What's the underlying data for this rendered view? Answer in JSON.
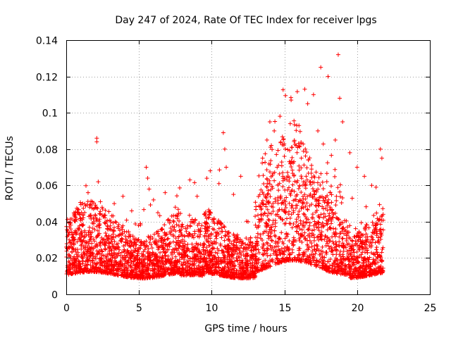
{
  "chart_data": {
    "type": "scatter",
    "title": "Day 247 of 2024, Rate Of TEC Index for receiver lpgs",
    "xlabel": "GPS time / hours",
    "ylabel": "ROTI / TECUs",
    "xlim": [
      0,
      25
    ],
    "ylim": [
      0,
      0.14
    ],
    "xticks": [
      0,
      5,
      10,
      15,
      20,
      25
    ],
    "xtick_labels": [
      "0",
      "5",
      "10",
      "15",
      "20",
      "25"
    ],
    "yticks": [
      0,
      0.02,
      0.04,
      0.06,
      0.08,
      0.1,
      0.12,
      0.14
    ],
    "ytick_labels": [
      "0",
      "0.02",
      "0.04",
      "0.06",
      "0.08",
      "0.1",
      "0.12",
      "0.14"
    ],
    "grid": true,
    "marker": "+",
    "color": "#ff0000",
    "series": [
      {
        "name": "ROTI",
        "x": [
          0.1,
          0.2,
          0.3,
          0.5,
          1.0,
          1.5,
          1.6,
          1.8,
          2.1,
          2.1,
          2.2,
          2.5,
          3.0,
          3.3,
          3.9,
          4.5,
          5.1,
          5.5,
          5.6,
          5.7,
          6.0,
          6.3,
          6.8,
          7.5,
          8.0,
          8.5,
          9.0,
          9.5,
          9.9,
          10.5,
          10.8,
          10.9,
          11.0,
          11.5,
          12.0,
          12.5,
          13.5,
          13.8,
          14.0,
          14.1,
          14.3,
          14.5,
          15.0,
          15.5,
          16.0,
          16.4,
          16.6,
          17.0,
          17.3,
          17.5,
          18.0,
          18.5,
          18.7,
          18.8,
          19.0,
          19.5,
          20.0,
          20.5,
          21.0,
          21.3,
          21.6,
          21.7
        ],
        "y": [
          0.035,
          0.03,
          0.02,
          0.028,
          0.042,
          0.056,
          0.048,
          0.051,
          0.086,
          0.084,
          0.062,
          0.047,
          0.036,
          0.05,
          0.054,
          0.046,
          0.039,
          0.07,
          0.064,
          0.058,
          0.052,
          0.045,
          0.056,
          0.048,
          0.03,
          0.063,
          0.054,
          0.044,
          0.068,
          0.061,
          0.089,
          0.08,
          0.07,
          0.055,
          0.065,
          0.04,
          0.075,
          0.085,
          0.095,
          0.082,
          0.09,
          0.07,
          0.076,
          0.081,
          0.093,
          0.113,
          0.105,
          0.11,
          0.09,
          0.125,
          0.12,
          0.085,
          0.132,
          0.108,
          0.095,
          0.078,
          0.07,
          0.065,
          0.06,
          0.059,
          0.08,
          0.075
        ]
      }
    ],
    "notes": "Dense band of points roughly between 0.003 and 0.04 from 0 to 21.8 hours, densest 13-19 hours around 0.01-0.06."
  }
}
